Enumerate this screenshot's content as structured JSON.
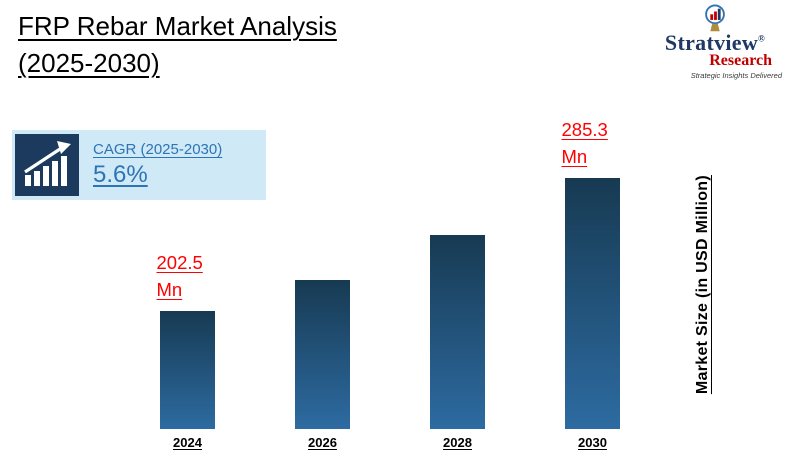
{
  "header": {
    "title_line1": "FRP Rebar Market Analysis",
    "title_line2": "(2025-2030)"
  },
  "logo": {
    "name": "Stratview",
    "reg": "®",
    "sub": "Research",
    "tagline": "Strategic Insights Delivered"
  },
  "cagr": {
    "label": "CAGR (2025-2030)",
    "value": "5.6%",
    "icon": "growth-chart-arrow-icon"
  },
  "axis": {
    "y_label": "Market Size (in USD Million)"
  },
  "chart_data": {
    "type": "bar",
    "title": "FRP Rebar Market Analysis (2025-2030)",
    "categories": [
      "2024",
      "2026",
      "2028",
      "2030"
    ],
    "values": [
      202.5,
      222,
      250,
      285.3
    ],
    "value_labels": [
      "202.5 Mn",
      "",
      "",
      "285.3 Mn"
    ],
    "labeled_points": {
      "2024": "202.5 Mn",
      "2030": "285.3 Mn"
    },
    "cagr": "5.6% (2025-2030)",
    "xlabel": "",
    "ylabel": "Market Size (in USD Million)",
    "unit": "USD Million",
    "legend": "none",
    "grid": "off",
    "bar_color_top": "#173a52",
    "bar_color_bottom": "#2d6ba1",
    "value_label_color": "#ff0000",
    "accent_blue": "#2e74b5",
    "callout_bg": "#cfe9f7",
    "logo_navy": "#1f3864",
    "logo_red": "#c00000"
  }
}
